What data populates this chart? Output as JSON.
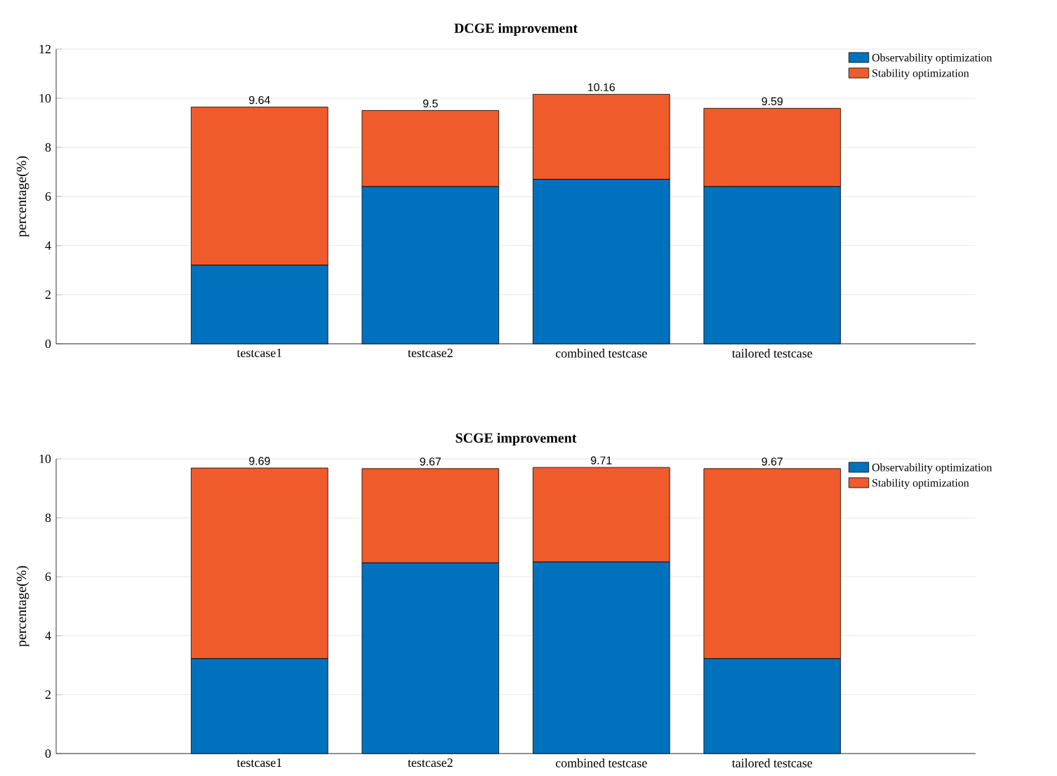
{
  "chart_data": [
    {
      "type": "bar",
      "title": "DCGE improvement",
      "ylabel": "percentage(%)",
      "categories": [
        "testcase1",
        "testcase2",
        "combined testcase",
        "tailored testcase"
      ],
      "series": [
        {
          "name": "Observability optimization",
          "color": "#0072bd",
          "values": [
            3.2,
            6.4,
            6.7,
            6.4
          ]
        },
        {
          "name": "Stability optimization",
          "color": "#ef5b2b",
          "values": [
            6.44,
            3.1,
            3.46,
            3.19
          ]
        }
      ],
      "stacked": true,
      "totals": [
        "9.64",
        "9.5",
        "10.16",
        "9.59"
      ],
      "ylim": [
        0,
        12
      ],
      "yticks": [
        0,
        2,
        4,
        6,
        8,
        10,
        12
      ],
      "grid": "y",
      "legend": "top right"
    },
    {
      "type": "bar",
      "title": "SCGE improvement",
      "ylabel": "percentage(%)",
      "categories": [
        "testcase1",
        "testcase2",
        "combined testcase",
        "tailored testcase"
      ],
      "series": [
        {
          "name": "Observability optimization",
          "color": "#0072bd",
          "values": [
            3.22,
            6.47,
            6.5,
            3.22
          ]
        },
        {
          "name": "Stability optimization",
          "color": "#ef5b2b",
          "values": [
            6.47,
            3.2,
            3.21,
            6.45
          ]
        }
      ],
      "stacked": true,
      "totals": [
        "9.69",
        "9.67",
        "9.71",
        "9.67"
      ],
      "ylim": [
        0,
        10
      ],
      "yticks": [
        0,
        2,
        4,
        6,
        8,
        10
      ],
      "grid": "y",
      "legend": "top right"
    }
  ]
}
